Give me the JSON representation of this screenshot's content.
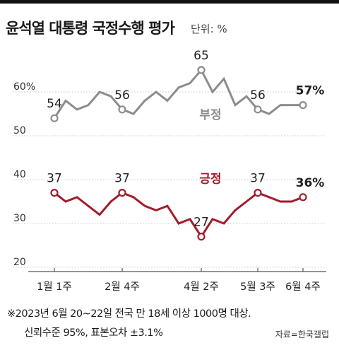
{
  "title": "윤석열 대통령 국정수행 평가",
  "unit": "단위: %",
  "footnote_line1": "※2023년 6월 20~22일 전국 만 18세 이상 1000명 대상.",
  "footnote_line2": "신뢰수준 95%, 표본오차 ±3.1%",
  "source": "자료=한국갤럽",
  "colors": {
    "negative": "#8c8c8c",
    "positive": "#a21c2c",
    "grid": "#c8c8c8",
    "axis": "#555555"
  },
  "chart_data": {
    "type": "line",
    "ylim": [
      20,
      70
    ],
    "yticks": [
      {
        "value": 20,
        "label": "20"
      },
      {
        "value": 30,
        "label": "30"
      },
      {
        "value": 40,
        "label": "40"
      },
      {
        "value": 50,
        "label": "50"
      },
      {
        "value": 60,
        "label": "60%"
      }
    ],
    "x_count": 23,
    "xticks": [
      {
        "index": 0,
        "label": "1월 1주"
      },
      {
        "index": 6,
        "label": "2월 4주"
      },
      {
        "index": 13,
        "label": "4월 2주"
      },
      {
        "index": 18,
        "label": "5월 3주"
      },
      {
        "index": 22,
        "label": "6월 4주"
      }
    ],
    "series": [
      {
        "name": "부정",
        "color": "#8c8c8c",
        "values": [
          54,
          58,
          56,
          57,
          60,
          59,
          56,
          55,
          58,
          60,
          58,
          61,
          62,
          65,
          60,
          63,
          57,
          59,
          56,
          55,
          57,
          57,
          57
        ],
        "markers": [
          0,
          6,
          13,
          18,
          22
        ],
        "labels": [
          {
            "index": 0,
            "text": "54"
          },
          {
            "index": 6,
            "text": "56"
          },
          {
            "index": 13,
            "text": "65"
          },
          {
            "index": 18,
            "text": "56"
          },
          {
            "index": 22,
            "text": "57%"
          }
        ]
      },
      {
        "name": "긍정",
        "color": "#a21c2c",
        "values": [
          37,
          35,
          36,
          34,
          32,
          35,
          37,
          36,
          34,
          33,
          34,
          30,
          31,
          27,
          31,
          30,
          33,
          35,
          37,
          36,
          35,
          35,
          36
        ],
        "markers": [
          0,
          6,
          13,
          18,
          22
        ],
        "labels": [
          {
            "index": 0,
            "text": "37"
          },
          {
            "index": 6,
            "text": "37"
          },
          {
            "index": 13,
            "text": "27"
          },
          {
            "index": 18,
            "text": "37"
          },
          {
            "index": 22,
            "text": "36%"
          }
        ]
      }
    ]
  }
}
